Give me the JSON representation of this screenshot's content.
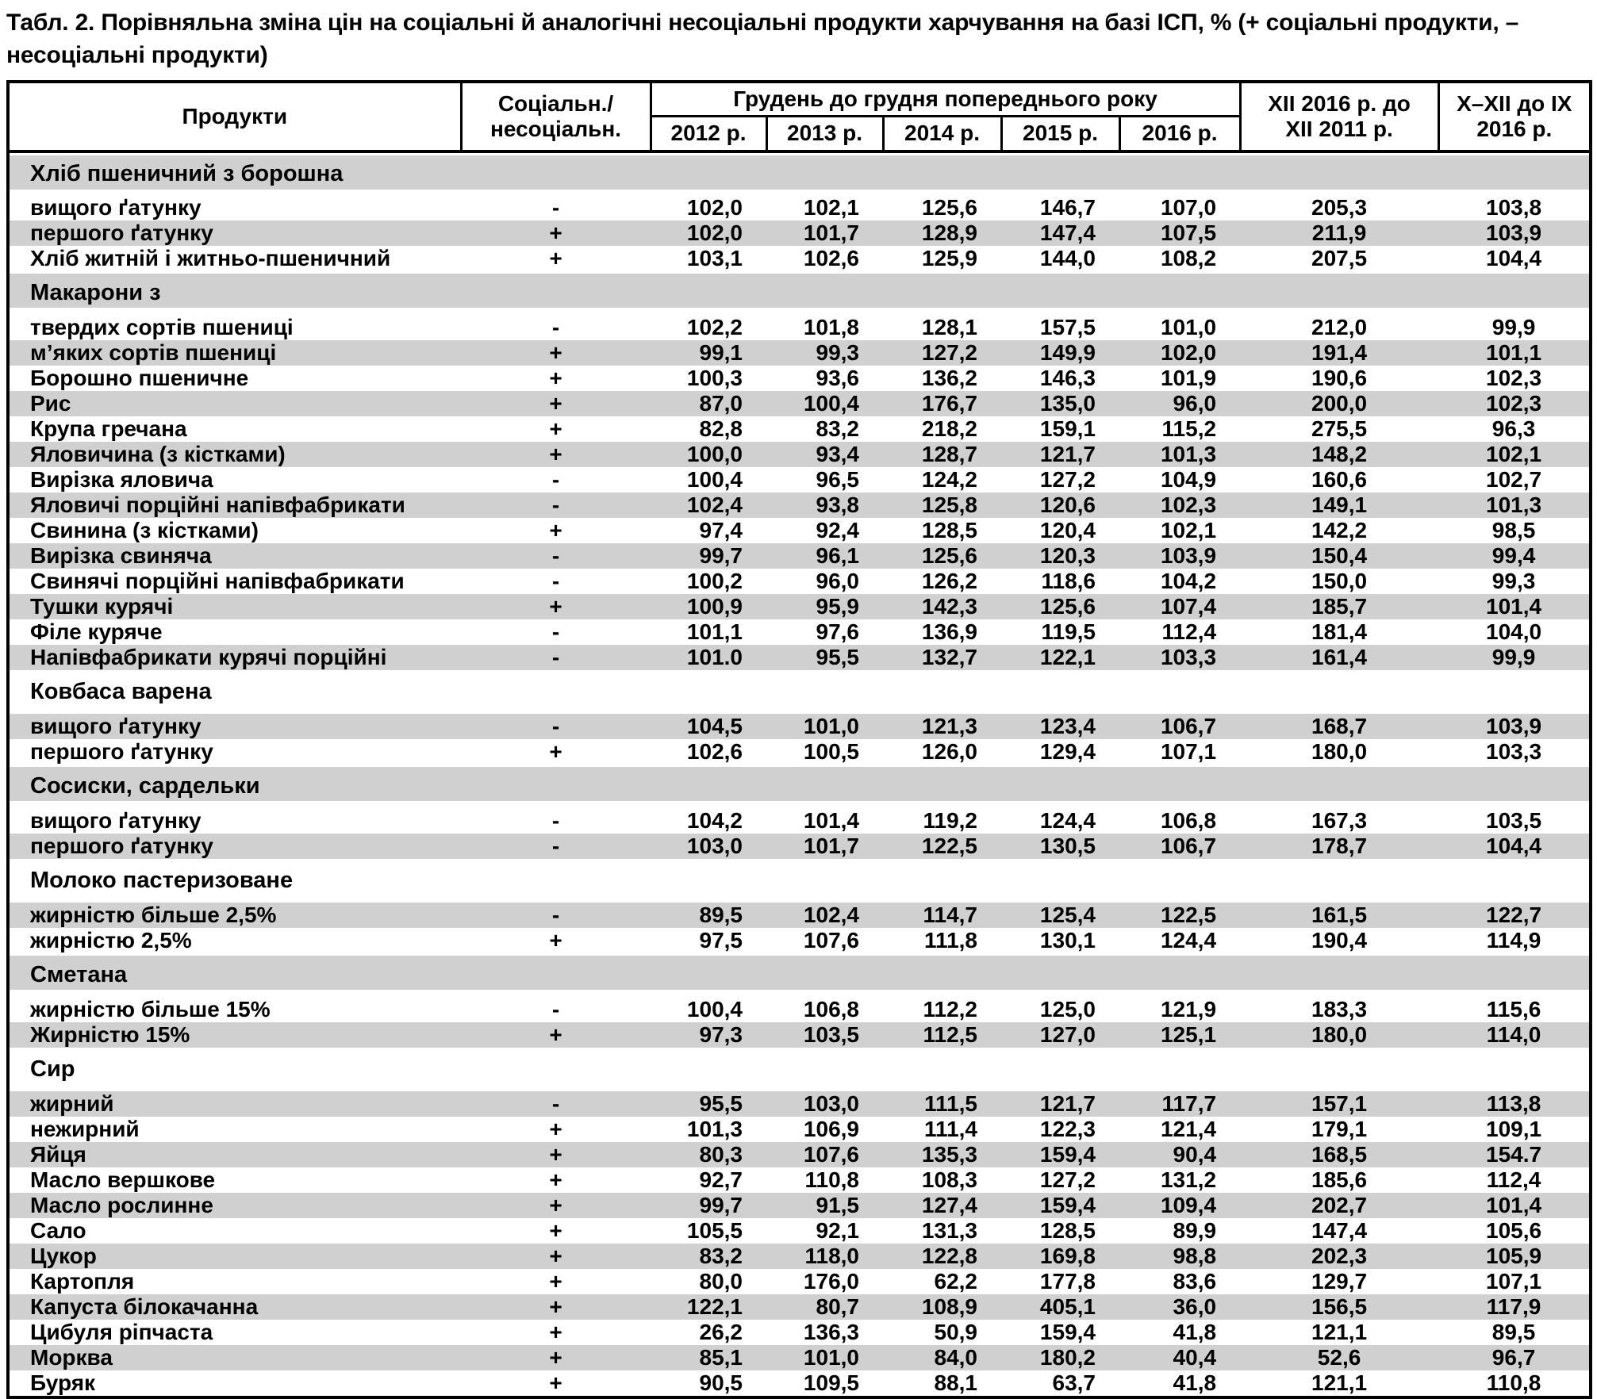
{
  "title": "Табл. 2. Порівняльна зміна цін на соціальні й аналогічні несоціальні продукти харчування на базі ІСП, % (+ соціальні продукти, – несоціальні продукти)",
  "colors": {
    "stripe": "#d0d0d0",
    "border": "#000000",
    "background": "#ffffff"
  },
  "table": {
    "headers": {
      "products": "Продукти",
      "social_line1": "Соціальн./",
      "social_line2": "несоціальн.",
      "group": "Грудень до грудня попереднього року",
      "years": [
        "2012 р.",
        "2013 р.",
        "2014 р.",
        "2015 р.",
        "2016 р."
      ],
      "xii_line1": "XII 2016 р. до",
      "xii_line2": "XII 2011 р.",
      "q4_line1": "X–XII до IX",
      "q4_line2": "2016 р."
    },
    "rows": [
      {
        "type": "section",
        "label": "Хліб пшеничний з борошна"
      },
      {
        "type": "data",
        "label": "вищого ґатунку",
        "sign": "-",
        "values": [
          "102,0",
          "102,1",
          "125,6",
          "146,7",
          "107,0",
          "205,3",
          "103,8"
        ]
      },
      {
        "type": "data",
        "label": "першого ґатунку",
        "sign": "+",
        "values": [
          "102,0",
          "101,7",
          "128,9",
          "147,4",
          "107,5",
          "211,9",
          "103,9"
        ]
      },
      {
        "type": "data",
        "label": "Хліб житній і житньо-пшеничний",
        "sign": "+",
        "values": [
          "103,1",
          "102,6",
          "125,9",
          "144,0",
          "108,2",
          "207,5",
          "104,4"
        ]
      },
      {
        "type": "section",
        "label": "Макарони з"
      },
      {
        "type": "data",
        "label": "твердих сортів пшениці",
        "sign": "-",
        "values": [
          "102,2",
          "101,8",
          "128,1",
          "157,5",
          "101,0",
          "212,0",
          "99,9"
        ]
      },
      {
        "type": "data",
        "label": "м’яких сортів пшениці",
        "sign": "+",
        "values": [
          "99,1",
          "99,3",
          "127,2",
          "149,9",
          "102,0",
          "191,4",
          "101,1"
        ]
      },
      {
        "type": "data",
        "label": "Борошно пшеничне",
        "sign": "+",
        "values": [
          "100,3",
          "93,6",
          "136,2",
          "146,3",
          "101,9",
          "190,6",
          "102,3"
        ]
      },
      {
        "type": "data",
        "label": "Рис",
        "sign": "+",
        "values": [
          "87,0",
          "100,4",
          "176,7",
          "135,0",
          "96,0",
          "200,0",
          "102,3"
        ]
      },
      {
        "type": "data",
        "label": "Крупа гречана",
        "sign": "+",
        "values": [
          "82,8",
          "83,2",
          "218,2",
          "159,1",
          "115,2",
          "275,5",
          "96,3"
        ]
      },
      {
        "type": "data",
        "label": "Яловичина (з кістками)",
        "sign": "+",
        "values": [
          "100,0",
          "93,4",
          "128,7",
          "121,7",
          "101,3",
          "148,2",
          "102,1"
        ]
      },
      {
        "type": "data",
        "label": "Вирізка яловича",
        "sign": "-",
        "values": [
          "100,4",
          "96,5",
          "124,2",
          "127,2",
          "104,9",
          "160,6",
          "102,7"
        ]
      },
      {
        "type": "data",
        "label": "Яловичі порційні напівфабрикати",
        "sign": "-",
        "values": [
          "102,4",
          "93,8",
          "125,8",
          "120,6",
          "102,3",
          "149,1",
          "101,3"
        ]
      },
      {
        "type": "data",
        "label": "Свинина (з кістками)",
        "sign": "+",
        "values": [
          "97,4",
          "92,4",
          "128,5",
          "120,4",
          "102,1",
          "142,2",
          "98,5"
        ]
      },
      {
        "type": "data",
        "label": "Вирізка свиняча",
        "sign": "-",
        "values": [
          "99,7",
          "96,1",
          "125,6",
          "120,3",
          "103,9",
          "150,4",
          "99,4"
        ]
      },
      {
        "type": "data",
        "label": "Свинячі порційні напівфабрикати",
        "sign": "-",
        "values": [
          "100,2",
          "96,0",
          "126,2",
          "118,6",
          "104,2",
          "150,0",
          "99,3"
        ]
      },
      {
        "type": "data",
        "label": "Тушки курячі",
        "sign": "+",
        "values": [
          "100,9",
          "95,9",
          "142,3",
          "125,6",
          "107,4",
          "185,7",
          "101,4"
        ]
      },
      {
        "type": "data",
        "label": "Філе куряче",
        "sign": "-",
        "values": [
          "101,1",
          "97,6",
          "136,9",
          "119,5",
          "112,4",
          "181,4",
          "104,0"
        ]
      },
      {
        "type": "data",
        "label": "Напівфабрикати курячі порційні",
        "sign": "-",
        "values": [
          "101.0",
          "95,5",
          "132,7",
          "122,1",
          "103,3",
          "161,4",
          "99,9"
        ]
      },
      {
        "type": "section",
        "label": "Ковбаса варена"
      },
      {
        "type": "data",
        "label": "вищого ґатунку",
        "sign": "-",
        "values": [
          "104,5",
          "101,0",
          "121,3",
          "123,4",
          "106,7",
          "168,7",
          "103,9"
        ]
      },
      {
        "type": "data",
        "label": "першого ґатунку",
        "sign": "+",
        "values": [
          "102,6",
          "100,5",
          "126,0",
          "129,4",
          "107,1",
          "180,0",
          "103,3"
        ]
      },
      {
        "type": "section",
        "label": "Сосиски, сардельки"
      },
      {
        "type": "data",
        "label": "вищого ґатунку",
        "sign": "-",
        "values": [
          "104,2",
          "101,4",
          "119,2",
          "124,4",
          "106,8",
          "167,3",
          "103,5"
        ]
      },
      {
        "type": "data",
        "label": "першого ґатунку",
        "sign": "-",
        "values": [
          "103,0",
          "101,7",
          "122,5",
          "130,5",
          "106,7",
          "178,7",
          "104,4"
        ]
      },
      {
        "type": "section",
        "label": "Молоко пастеризоване"
      },
      {
        "type": "data",
        "label": "жирністю більше 2,5%",
        "sign": "-",
        "values": [
          "89,5",
          "102,4",
          "114,7",
          "125,4",
          "122,5",
          "161,5",
          "122,7"
        ]
      },
      {
        "type": "data",
        "label": "жирністю 2,5%",
        "sign": "+",
        "values": [
          "97,5",
          "107,6",
          "111,8",
          "130,1",
          "124,4",
          "190,4",
          "114,9"
        ]
      },
      {
        "type": "section",
        "label": "Сметана"
      },
      {
        "type": "data",
        "label": "жирністю більше 15%",
        "sign": "-",
        "values": [
          "100,4",
          "106,8",
          "112,2",
          "125,0",
          "121,9",
          "183,3",
          "115,6"
        ]
      },
      {
        "type": "data",
        "label": "Жирністю 15%",
        "sign": "+",
        "values": [
          "97,3",
          "103,5",
          "112,5",
          "127,0",
          "125,1",
          "180,0",
          "114,0"
        ]
      },
      {
        "type": "section",
        "label": "Сир"
      },
      {
        "type": "data",
        "label": "жирний",
        "sign": "-",
        "values": [
          "95,5",
          "103,0",
          "111,5",
          "121,7",
          "117,7",
          "157,1",
          "113,8"
        ]
      },
      {
        "type": "data",
        "label": "нежирний",
        "sign": "+",
        "values": [
          "101,3",
          "106,9",
          "111,4",
          "122,3",
          "121,4",
          "179,1",
          "109,1"
        ]
      },
      {
        "type": "data",
        "label": "Яйця",
        "sign": "+",
        "values": [
          "80,3",
          "107,6",
          "135,3",
          "159,4",
          "90,4",
          "168,5",
          "154.7"
        ]
      },
      {
        "type": "data",
        "label": "Масло вершкове",
        "sign": "+",
        "values": [
          "92,7",
          "110,8",
          "108,3",
          "127,2",
          "131,2",
          "185,6",
          "112,4"
        ]
      },
      {
        "type": "data",
        "label": "Масло рослинне",
        "sign": "+",
        "values": [
          "99,7",
          "91,5",
          "127,4",
          "159,4",
          "109,4",
          "202,7",
          "101,4"
        ]
      },
      {
        "type": "data",
        "label": "Сало",
        "sign": "+",
        "values": [
          "105,5",
          "92,1",
          "131,3",
          "128,5",
          "89,9",
          "147,4",
          "105,6"
        ]
      },
      {
        "type": "data",
        "label": "Цукор",
        "sign": "+",
        "values": [
          "83,2",
          "118,0",
          "122,8",
          "169,8",
          "98,8",
          "202,3",
          "105,9"
        ]
      },
      {
        "type": "data",
        "label": "Картопля",
        "sign": "+",
        "values": [
          "80,0",
          "176,0",
          "62,2",
          "177,8",
          "83,6",
          "129,7",
          "107,1"
        ]
      },
      {
        "type": "data",
        "label": "Капуста білокачанна",
        "sign": "+",
        "values": [
          "122,1",
          "80,7",
          "108,9",
          "405,1",
          "36,0",
          "156,5",
          "117,9"
        ]
      },
      {
        "type": "data",
        "label": "Цибуля ріпчаста",
        "sign": "+",
        "values": [
          "26,2",
          "136,3",
          "50,9",
          "159,4",
          "41,8",
          "121,1",
          "89,5"
        ]
      },
      {
        "type": "data",
        "label": "Морква",
        "sign": "+",
        "values": [
          "85,1",
          "101,0",
          "84,0",
          "180,2",
          "40,4",
          "52,6",
          "96,7"
        ]
      },
      {
        "type": "data",
        "label": "Буряк",
        "sign": "+",
        "values": [
          "90,5",
          "109,5",
          "88,1",
          "63,7",
          "41,8",
          "121,1",
          "110,8"
        ]
      }
    ]
  }
}
